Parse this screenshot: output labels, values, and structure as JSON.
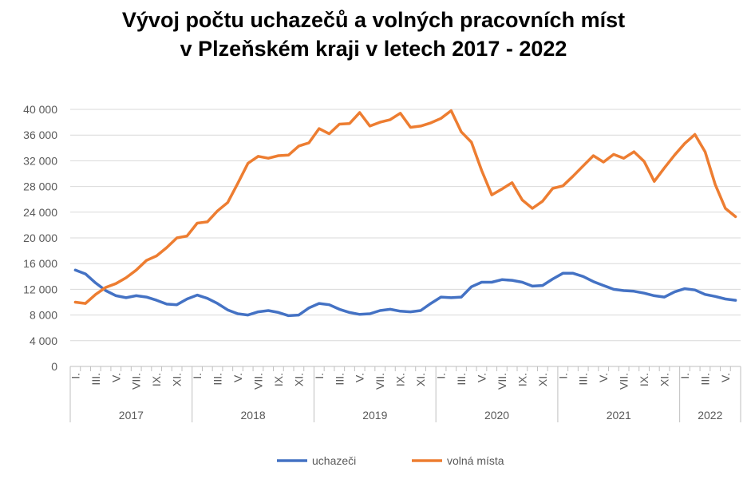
{
  "chart_data": {
    "type": "line",
    "title_line1": "Vývoj počtu uchazečů a volných pracovních míst",
    "title_line2": "v Plzeňském kraji v letech 2017 - 2022",
    "ylim": [
      0,
      40000
    ],
    "yticks": [
      0,
      4000,
      8000,
      12000,
      16000,
      20000,
      24000,
      28000,
      32000,
      36000,
      40000
    ],
    "ytick_labels": [
      "0",
      "4 000",
      "8 000",
      "12 000",
      "16 000",
      "20 000",
      "24 000",
      "28 000",
      "32 000",
      "36 000",
      "40 000"
    ],
    "month_labels": [
      "I.",
      "III.",
      "V.",
      "VII.",
      "IX.",
      "XI."
    ],
    "years": [
      {
        "label": "2017",
        "months": 12
      },
      {
        "label": "2018",
        "months": 12
      },
      {
        "label": "2019",
        "months": 12
      },
      {
        "label": "2020",
        "months": 12
      },
      {
        "label": "2021",
        "months": 12
      },
      {
        "label": "2022",
        "months": 6
      }
    ],
    "legend_position": "bottom",
    "series": [
      {
        "name": "uchazeči",
        "color": "#4472C4",
        "values": [
          15000,
          14400,
          13000,
          11800,
          11000,
          10700,
          11000,
          10800,
          10300,
          9700,
          9600,
          10500,
          11100,
          10600,
          9800,
          8800,
          8200,
          8000,
          8500,
          8700,
          8400,
          7900,
          8000,
          9100,
          9800,
          9600,
          8900,
          8400,
          8100,
          8200,
          8700,
          8900,
          8600,
          8500,
          8700,
          9800,
          10800,
          10700,
          10800,
          12400,
          13100,
          13100,
          13500,
          13400,
          13100,
          12500,
          12600,
          13600,
          14500,
          14500,
          14000,
          13200,
          12600,
          12000,
          11800,
          11700,
          11400,
          11000,
          10800,
          11600,
          12100,
          11900,
          11200,
          10900,
          10500,
          10300
        ]
      },
      {
        "name": "volná místa",
        "color": "#ED7D31",
        "values": [
          10000,
          9800,
          11200,
          12300,
          12900,
          13800,
          15000,
          16500,
          17200,
          18500,
          20000,
          20300,
          22300,
          22500,
          24200,
          25500,
          28500,
          31600,
          32700,
          32400,
          32800,
          32900,
          34300,
          34800,
          37000,
          36200,
          37700,
          37800,
          39500,
          37400,
          38000,
          38400,
          39400,
          37200,
          37400,
          37900,
          38600,
          39800,
          36500,
          34900,
          30500,
          26700,
          27600,
          28600,
          25900,
          24600,
          25700,
          27700,
          28100,
          29600,
          31200,
          32800,
          31800,
          33000,
          32400,
          33400,
          31900,
          28800,
          30900,
          32900,
          34700,
          36100,
          33400,
          28300,
          24600,
          23300
        ]
      }
    ]
  }
}
